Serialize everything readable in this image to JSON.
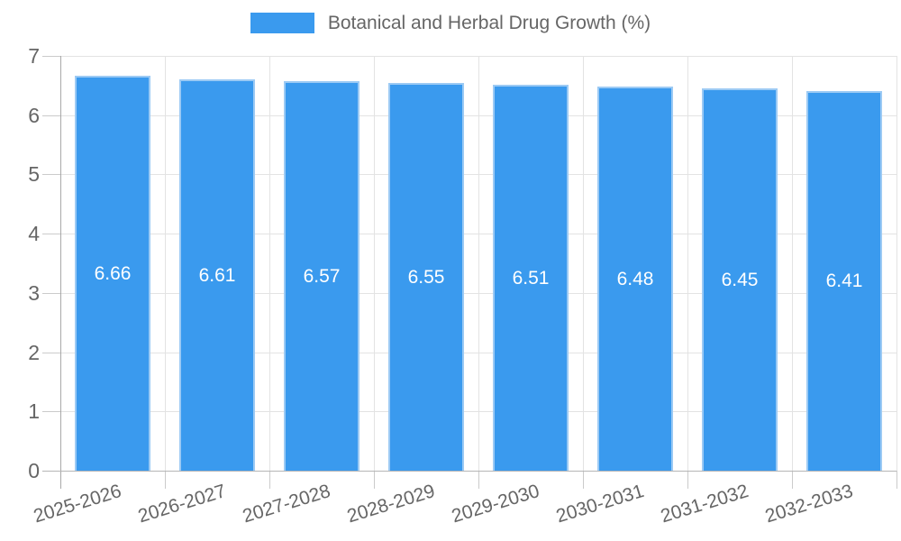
{
  "legend": {
    "label": "Botanical and Herbal Drug Growth (%)"
  },
  "colors": {
    "bar_fill": "#3A9AEE",
    "bar_border": "#9CCAF4",
    "grid": "#E3E3E3",
    "tick_mark": "#CBCBCB",
    "y_axis_line": "#A8A8A8",
    "x_axis_line": "#B5B5B5",
    "tick_text": "#666666",
    "legend_text": "#666666",
    "value_label_text": "#FFFFFF"
  },
  "chart_data": {
    "type": "bar",
    "title": "",
    "legend": "Botanical and Herbal Drug Growth (%)",
    "legend_position": "top",
    "categories": [
      "2025-2026",
      "2026-2027",
      "2027-2028",
      "2028-2029",
      "2029-2030",
      "2030-2031",
      "2031-2032",
      "2032-2033"
    ],
    "values": [
      6.66,
      6.61,
      6.57,
      6.55,
      6.51,
      6.48,
      6.45,
      6.41
    ],
    "value_labels_shown": [
      "6.66",
      "6.61",
      "6.57",
      "6.55",
      "6.51",
      "6.48",
      "6.45",
      "6.41"
    ],
    "value_label_position": "inside-center",
    "xlabel": "",
    "ylabel": "",
    "ylim": [
      0,
      7
    ],
    "yticks": [
      0,
      1,
      2,
      3,
      4,
      5,
      6,
      7
    ],
    "grid": true,
    "x_tick_rotation_deg": -17
  }
}
